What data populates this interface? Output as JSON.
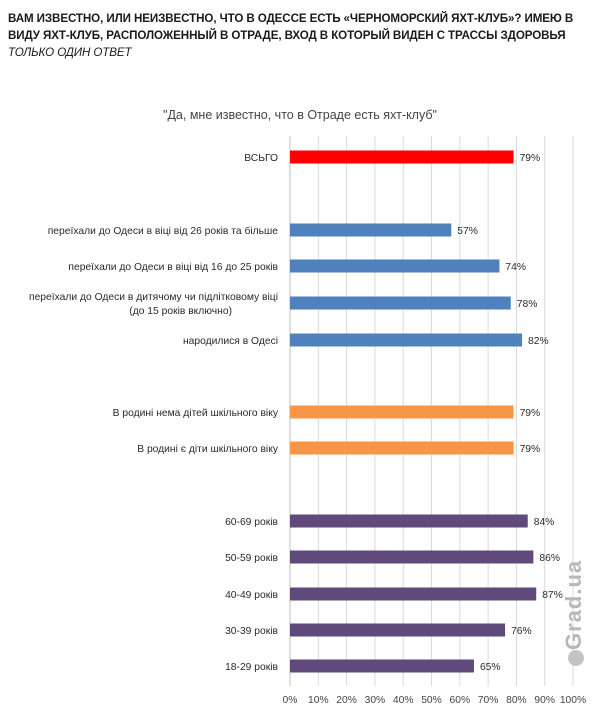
{
  "question": {
    "main": "ВАМ ИЗВЕСТНО, ИЛИ НЕИЗВЕСТНО, ЧТО В ОДЕССЕ ЕСТЬ «ЧЕРНОМОРСКИЙ  ЯХТ-КЛУБ»?  ИМЕЮ В ВИДУ ЯХТ-КЛУБ, РАСПОЛОЖЕННЫЙ В ОТРАДЕ, ВХОД В КОТОРЫЙ ВИДЕН С ТРАССЫ ЗДОРОВЬЯ",
    "note": "ТОЛЬКО ОДИН ОТВЕТ"
  },
  "watermark": "Grad.ua",
  "chart_data": {
    "type": "bar",
    "orientation": "horizontal",
    "title": "\"Да, мне известно, что в Отраде есть яхт-клуб\"",
    "xlim": [
      0,
      100
    ],
    "x_ticks": [
      "0%",
      "10%",
      "20%",
      "30%",
      "40%",
      "50%",
      "60%",
      "70%",
      "80%",
      "90%",
      "100%"
    ],
    "grid": true,
    "value_suffix": "%",
    "colors": {
      "total": "#ff0000",
      "migration": "#4f81bd",
      "children": "#f79646",
      "age": "#604a7b",
      "grid": "#d9d9d9",
      "axis": "#bfbfbf"
    },
    "groups": [
      {
        "name": "total",
        "bars": [
          {
            "label": "ВСЬГО",
            "value": 79
          }
        ]
      },
      {
        "name": "migration",
        "bars": [
          {
            "label": "переїхали до Одеси в віці від 26 років та більше",
            "value": 57
          },
          {
            "label": "переїхали до Одеси в віці від 16 до 25 років",
            "value": 74
          },
          {
            "label": "переїхали до Одеси в дитячому чи підлітковому віці",
            "label2": "(до 15 років включно)",
            "value": 78
          },
          {
            "label": "народилися в Одесі",
            "value": 82
          }
        ]
      },
      {
        "name": "children",
        "bars": [
          {
            "label": "В родині нема дітей шкільного віку",
            "value": 79
          },
          {
            "label": "В родині є діти шкільного віку",
            "value": 79
          }
        ]
      },
      {
        "name": "age",
        "bars": [
          {
            "label": "60-69 років",
            "value": 84
          },
          {
            "label": "50-59 років",
            "value": 86
          },
          {
            "label": "40-49 років",
            "value": 87
          },
          {
            "label": "30-39 років",
            "value": 76
          },
          {
            "label": "18-29 років",
            "value": 65
          }
        ]
      }
    ]
  }
}
